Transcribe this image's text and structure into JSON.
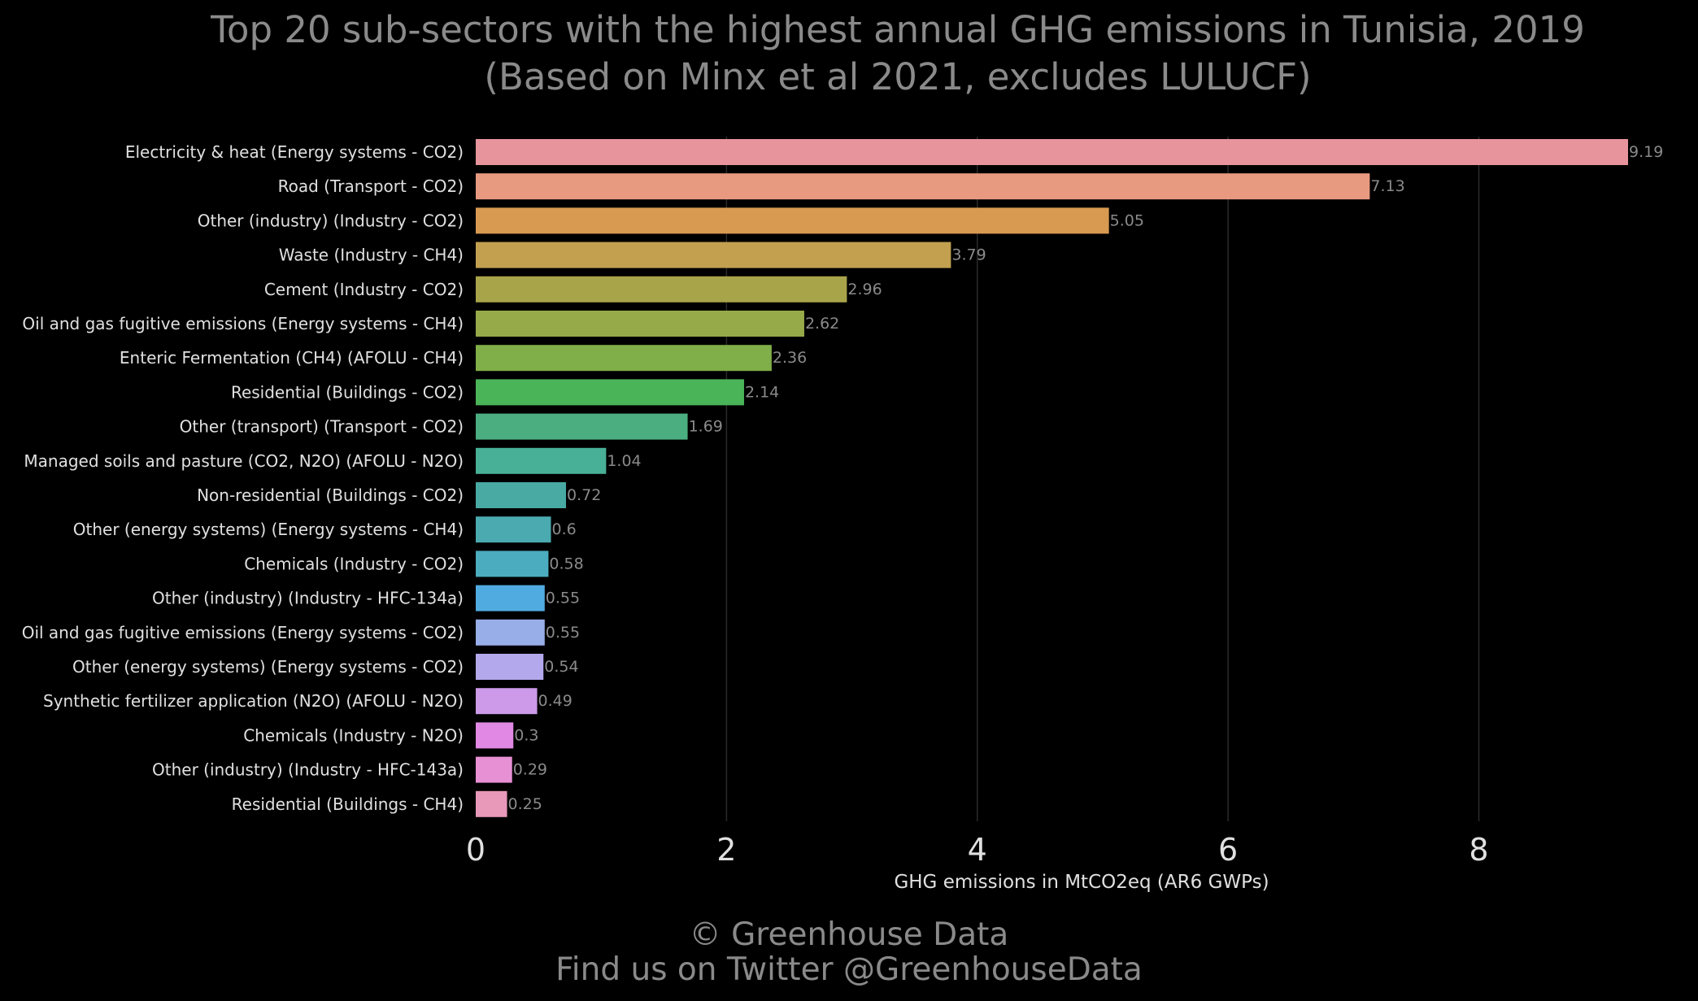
{
  "chart_data": {
    "type": "bar",
    "orientation": "horizontal",
    "title": "Top 20 sub-sectors with the highest annual GHG emissions in Tunisia, 2019",
    "subtitle": "(Based on Minx et al 2021, excludes LULUCF)",
    "xlabel": "GHG emissions in MtCO2eq (AR6 GWPs)",
    "ylabel": "",
    "xlim": [
      0,
      9.19
    ],
    "xticks": [
      "0",
      "2",
      "4",
      "6",
      "8"
    ],
    "xtick_values": [
      0,
      2,
      4,
      6,
      8
    ],
    "grid": "vertical",
    "categories": [
      "Electricity & heat (Energy systems - CO2)",
      "Road (Transport - CO2)",
      "Other (industry) (Industry - CO2)",
      "Waste (Industry - CH4)",
      "Cement (Industry - CO2)",
      "Oil and gas fugitive emissions (Energy systems - CH4)",
      "Enteric Fermentation (CH4) (AFOLU - CH4)",
      "Residential (Buildings - CO2)",
      "Other (transport) (Transport - CO2)",
      "Managed soils and pasture (CO2, N2O) (AFOLU - N2O)",
      "Non-residential (Buildings - CO2)",
      "Other (energy systems) (Energy systems - CH4)",
      "Chemicals (Industry - CO2)",
      "Other (industry) (Industry - HFC-134a)",
      "Oil and gas fugitive emissions (Energy systems - CO2)",
      "Other (energy systems) (Energy systems - CO2)",
      "Synthetic fertilizer application (N2O) (AFOLU - N2O)",
      "Chemicals (Industry - N2O)",
      "Other (industry) (Industry - HFC-143a)",
      "Residential (Buildings - CH4)"
    ],
    "values": [
      9.19,
      7.13,
      5.05,
      3.79,
      2.96,
      2.62,
      2.36,
      2.14,
      1.69,
      1.04,
      0.72,
      0.6,
      0.58,
      0.55,
      0.55,
      0.54,
      0.49,
      0.3,
      0.29,
      0.25
    ],
    "value_labels": [
      "9.19",
      "7.13",
      "5.05",
      "3.79",
      "2.96",
      "2.62",
      "2.36",
      "2.14",
      "1.69",
      "1.04",
      "0.72",
      "0.6",
      "0.58",
      "0.55",
      "0.55",
      "0.54",
      "0.49",
      "0.3",
      "0.29",
      "0.25"
    ],
    "colors": [
      "#e8949c",
      "#e89a80",
      "#d89a50",
      "#c2a050",
      "#a8a44a",
      "#96aa4a",
      "#80ae48",
      "#4ab458",
      "#4aae80",
      "#48b096",
      "#48aaa2",
      "#4aaab0",
      "#4aacbe",
      "#50ace0",
      "#98aee8",
      "#b4a8ec",
      "#cc9ae8",
      "#e088e4",
      "#e890d4",
      "#e898b8"
    ]
  },
  "footer": {
    "credit": "© Greenhouse Data",
    "twitter": "Find us on Twitter @GreenhouseData"
  },
  "colors": {
    "background": "#000000",
    "title_text": "#8a8a8a",
    "label_text": "#e0e0e0",
    "value_text": "#8a8a8a",
    "grid": "#2a2a2a"
  }
}
